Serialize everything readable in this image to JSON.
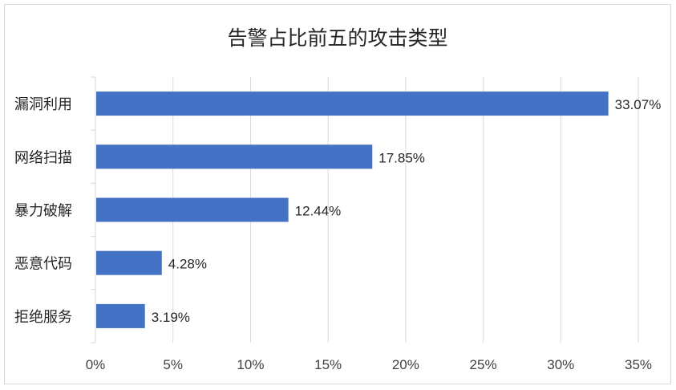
{
  "chart_data": {
    "type": "bar",
    "orientation": "horizontal",
    "title": "告警占比前五的攻击类型",
    "categories": [
      "漏洞利用",
      "网络扫描",
      "暴力破解",
      "恶意代码",
      "拒绝服务"
    ],
    "values": [
      33.07,
      17.85,
      12.44,
      4.28,
      3.19
    ],
    "data_labels": [
      "33.07%",
      "17.85%",
      "12.44%",
      "4.28%",
      "3.19%"
    ],
    "xlim": [
      0,
      35
    ],
    "x_ticks": [
      0,
      5,
      10,
      15,
      20,
      25,
      30,
      35
    ],
    "x_tick_labels": [
      "0%",
      "5%",
      "10%",
      "15%",
      "20%",
      "25%",
      "30%",
      "35%"
    ],
    "grid": "vertical",
    "legend": "none",
    "bar_color": "#4472c4",
    "gridline_color": "#d9d9d9"
  }
}
